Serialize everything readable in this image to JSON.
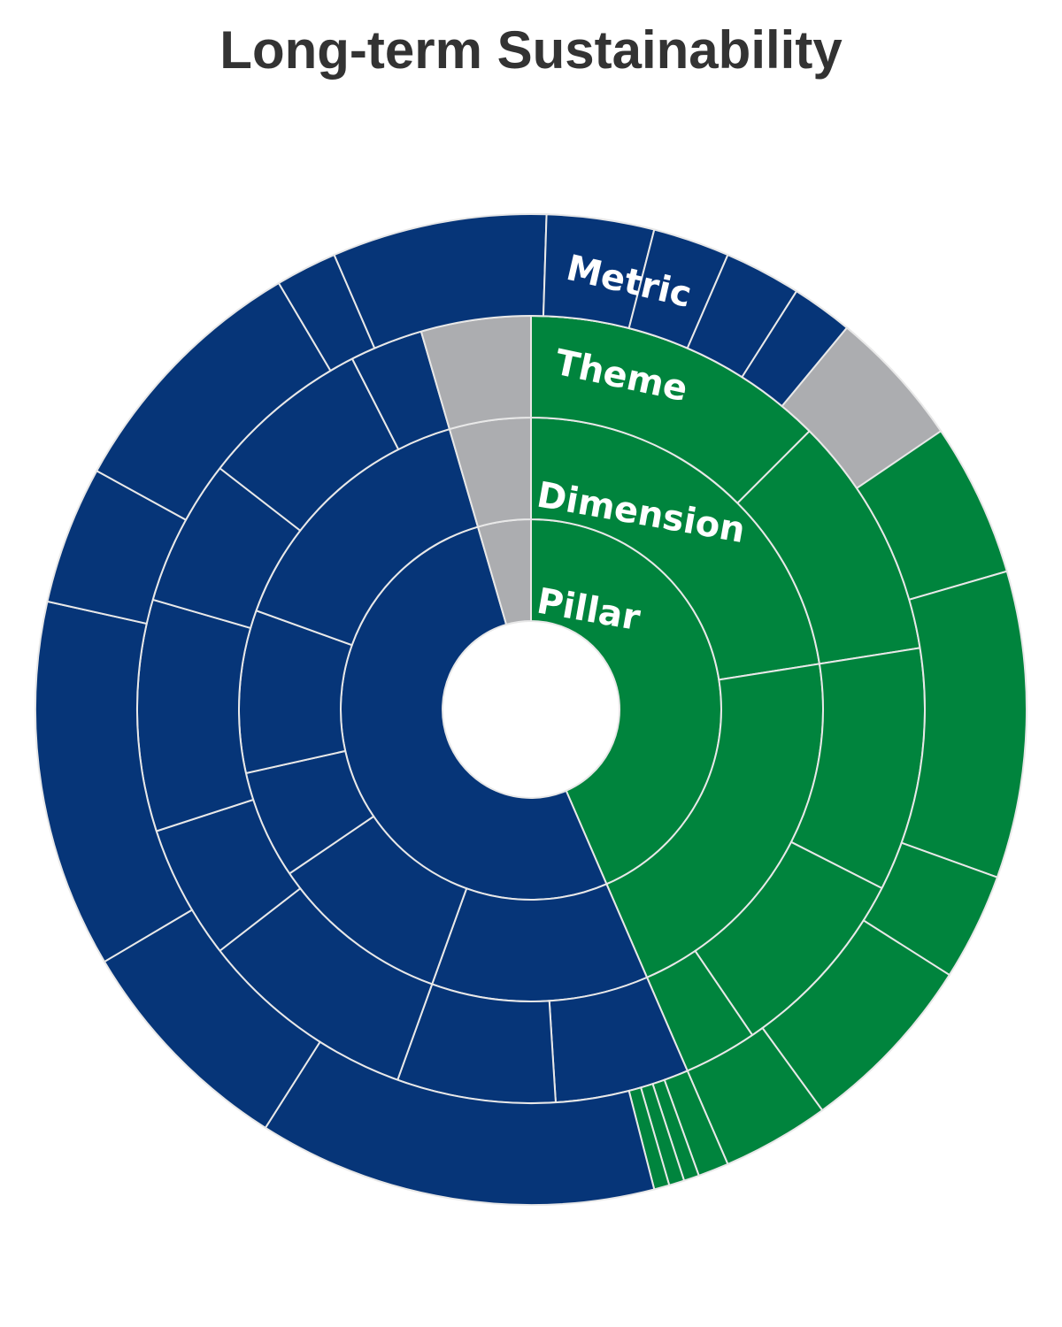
{
  "chart_data": {
    "type": "sunburst",
    "title": "Long-term Sustainability",
    "ring_labels": [
      "Pillar",
      "Dimension",
      "Theme",
      "Metric"
    ],
    "colors": {
      "green": "#00843D",
      "blue": "#063578",
      "gray": "#ACADB0",
      "separator": "#E8E8E8"
    },
    "rings": [
      {
        "name": "Pillar",
        "segments": [
          {
            "value": 43.5,
            "color": "green"
          },
          {
            "value": 52.0,
            "color": "blue"
          },
          {
            "value": 4.5,
            "color": "gray"
          }
        ]
      },
      {
        "name": "Dimension",
        "segments": [
          {
            "value": 22.5,
            "color": "green"
          },
          {
            "value": 21.0,
            "color": "green"
          },
          {
            "value": 12.0,
            "color": "blue"
          },
          {
            "value": 10.0,
            "color": "blue"
          },
          {
            "value": 6.0,
            "color": "blue"
          },
          {
            "value": 9.0,
            "color": "blue"
          },
          {
            "value": 15.0,
            "color": "blue"
          },
          {
            "value": 4.5,
            "color": "gray"
          }
        ]
      },
      {
        "name": "Theme",
        "segments": [
          {
            "value": 12.5,
            "color": "green"
          },
          {
            "value": 10.0,
            "color": "green"
          },
          {
            "value": 10.0,
            "color": "green"
          },
          {
            "value": 8.0,
            "color": "green"
          },
          {
            "value": 3.0,
            "color": "green"
          },
          {
            "value": 5.5,
            "color": "blue"
          },
          {
            "value": 6.5,
            "color": "blue"
          },
          {
            "value": 9.0,
            "color": "blue"
          },
          {
            "value": 5.5,
            "color": "blue"
          },
          {
            "value": 9.5,
            "color": "blue"
          },
          {
            "value": 6.0,
            "color": "blue"
          },
          {
            "value": 7.0,
            "color": "blue"
          },
          {
            "value": 3.0,
            "color": "blue"
          },
          {
            "value": 4.5,
            "color": "gray"
          }
        ]
      },
      {
        "name": "Metric",
        "segments": [
          {
            "value": 12.5,
            "color": "green"
          },
          {
            "value": 8.0,
            "color": "green"
          },
          {
            "value": 10.0,
            "color": "green"
          },
          {
            "value": 3.5,
            "color": "green"
          },
          {
            "value": 6.0,
            "color": "green"
          },
          {
            "value": 3.5,
            "color": "green"
          },
          {
            "value": 1.0,
            "color": "green"
          },
          {
            "value": 0.5,
            "color": "green"
          },
          {
            "value": 0.5,
            "color": "green"
          },
          {
            "value": 0.5,
            "color": "green"
          },
          {
            "value": 13.0,
            "color": "blue"
          },
          {
            "value": 7.5,
            "color": "blue"
          },
          {
            "value": 12.0,
            "color": "blue"
          },
          {
            "value": 4.5,
            "color": "blue"
          },
          {
            "value": 8.5,
            "color": "blue"
          },
          {
            "value": 2.0,
            "color": "blue"
          },
          {
            "value": 7.0,
            "color": "blue"
          },
          {
            "value": 3.5,
            "color": "blue"
          },
          {
            "value": 2.5,
            "color": "blue"
          },
          {
            "value": 2.5,
            "color": "blue"
          },
          {
            "value": 2.0,
            "color": "blue"
          },
          {
            "value": 4.5,
            "color": "gray"
          }
        ]
      }
    ]
  }
}
